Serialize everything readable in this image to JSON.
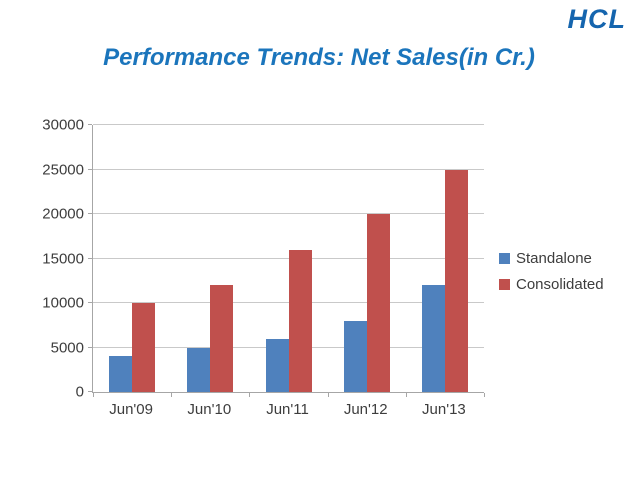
{
  "logo": {
    "text": "HCL",
    "color": "#1565ae"
  },
  "title": {
    "text": "Performance Trends: Net Sales(in Cr.)",
    "color": "#1b75bc"
  },
  "chart_data": {
    "type": "bar",
    "title": "Performance Trends: Net Sales(in Cr.)",
    "categories": [
      "Jun'09",
      "Jun'10",
      "Jun'11",
      "Jun'12",
      "Jun'13"
    ],
    "series": [
      {
        "name": "Standalone",
        "color": "#4f81bd",
        "values": [
          4000,
          5000,
          6000,
          8000,
          12000
        ]
      },
      {
        "name": "Consolidated",
        "color": "#c0504d",
        "values": [
          10000,
          12000,
          16000,
          20000,
          25000
        ]
      }
    ],
    "xlabel": "",
    "ylabel": "",
    "ylim": [
      0,
      30000
    ],
    "yticks": [
      0,
      5000,
      10000,
      15000,
      20000,
      25000,
      30000
    ],
    "grid": true,
    "legend_position": "right",
    "gridline_color": "#c9c9c9",
    "axis_line_color": "#a6a6a6",
    "axis_text_color": "#3d3d3d"
  }
}
